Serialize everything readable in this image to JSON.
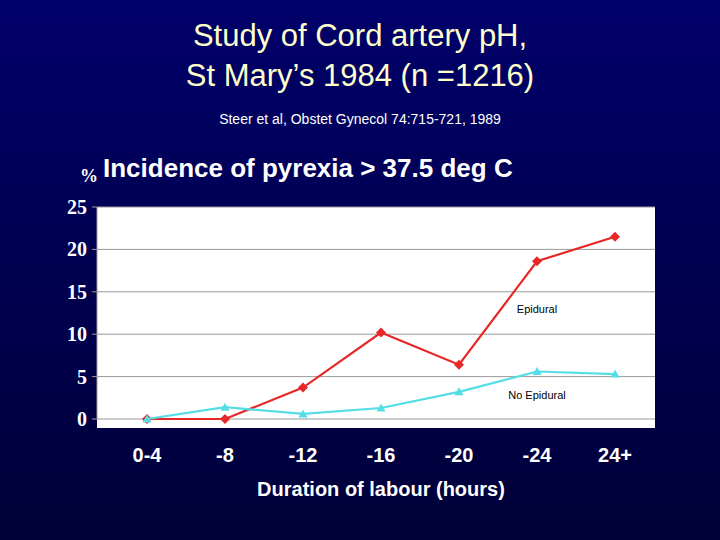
{
  "header": {
    "title": [
      "Study of Cord artery pH,",
      "St Mary’s 1984 (n =1216)"
    ],
    "subtitle": "Steer et al, Obstet Gynecol 74:715-721, 1989"
  },
  "chart_data": {
    "type": "line",
    "title": "Incidence of pyrexia > 37.5 deg C",
    "y_label": "%",
    "x_label": "Duration of labour (hours)",
    "categories": [
      "0-4",
      "-8",
      "-12",
      "-16",
      "-20",
      "-24",
      "24+"
    ],
    "series": [
      {
        "name": "Epidural",
        "color": "#e62828",
        "marker": "diamond",
        "values": [
          0,
          0,
          3.7,
          10.2,
          6.4,
          18.6,
          21.5
        ]
      },
      {
        "name": "No Epidural",
        "color": "#55dde6",
        "marker": "triangle",
        "values": [
          0,
          1.4,
          0.6,
          1.3,
          3.2,
          5.6,
          5.3
        ]
      }
    ],
    "ylim": [
      0,
      25
    ],
    "yticks": [
      0,
      5,
      10,
      15,
      20,
      25
    ],
    "grid": true
  }
}
